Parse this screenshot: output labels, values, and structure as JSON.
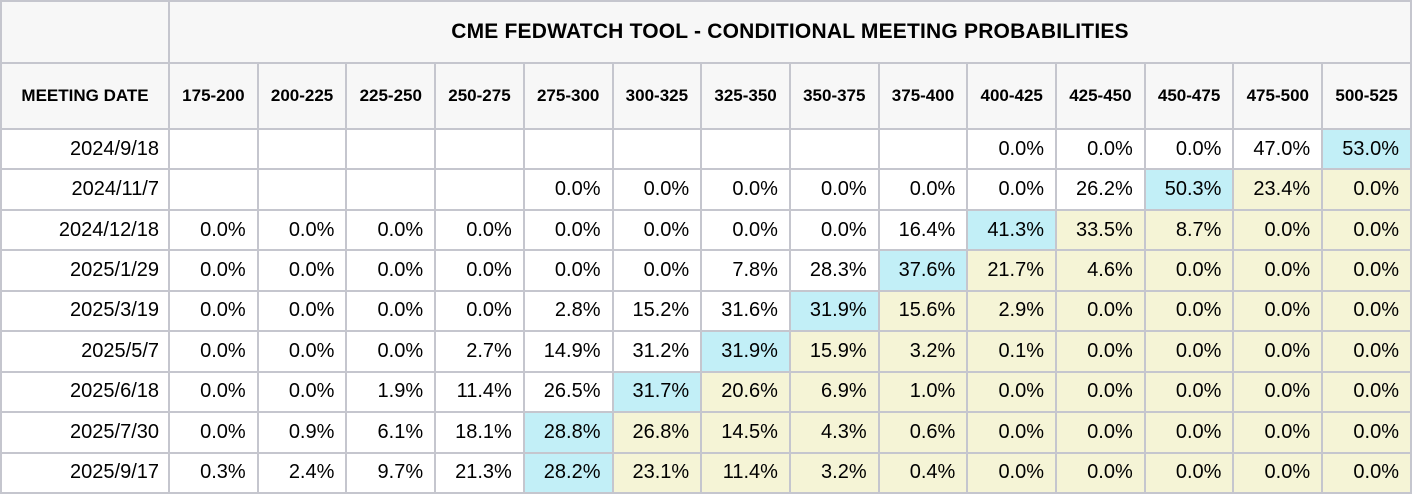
{
  "colors": {
    "highlight_cyan": "#c2eff7",
    "highlight_yellow": "#f5f4d6",
    "header_bg": "#f7f7f7",
    "grid_line": "#c5c6ce",
    "text": "#000000",
    "cell_bg": "#ffffff"
  },
  "chart_data": {
    "type": "table",
    "title": "CME FEDWATCH TOOL - CONDITIONAL MEETING PROBABILITIES",
    "row_header_label": "MEETING DATE",
    "columns": [
      "175-200",
      "200-225",
      "225-250",
      "250-275",
      "275-300",
      "300-325",
      "325-350",
      "350-375",
      "375-400",
      "400-425",
      "425-450",
      "450-475",
      "475-500",
      "500-525"
    ],
    "highlight_legend": {
      "cyan": "highest-probability cell in row",
      "yellow": "cells right of highest-probability cell",
      "none": "plain white cell"
    },
    "rows": [
      {
        "date": "2024/9/18",
        "cells": [
          {
            "v": "",
            "hl": "none"
          },
          {
            "v": "",
            "hl": "none"
          },
          {
            "v": "",
            "hl": "none"
          },
          {
            "v": "",
            "hl": "none"
          },
          {
            "v": "",
            "hl": "none"
          },
          {
            "v": "",
            "hl": "none"
          },
          {
            "v": "",
            "hl": "none"
          },
          {
            "v": "",
            "hl": "none"
          },
          {
            "v": "",
            "hl": "none"
          },
          {
            "v": "0.0%",
            "hl": "none"
          },
          {
            "v": "0.0%",
            "hl": "none"
          },
          {
            "v": "0.0%",
            "hl": "none"
          },
          {
            "v": "47.0%",
            "hl": "none"
          },
          {
            "v": "53.0%",
            "hl": "cyan"
          }
        ]
      },
      {
        "date": "2024/11/7",
        "cells": [
          {
            "v": "",
            "hl": "none"
          },
          {
            "v": "",
            "hl": "none"
          },
          {
            "v": "",
            "hl": "none"
          },
          {
            "v": "",
            "hl": "none"
          },
          {
            "v": "0.0%",
            "hl": "none"
          },
          {
            "v": "0.0%",
            "hl": "none"
          },
          {
            "v": "0.0%",
            "hl": "none"
          },
          {
            "v": "0.0%",
            "hl": "none"
          },
          {
            "v": "0.0%",
            "hl": "none"
          },
          {
            "v": "0.0%",
            "hl": "none"
          },
          {
            "v": "26.2%",
            "hl": "none"
          },
          {
            "v": "50.3%",
            "hl": "cyan"
          },
          {
            "v": "23.4%",
            "hl": "yellow"
          },
          {
            "v": "0.0%",
            "hl": "yellow"
          }
        ]
      },
      {
        "date": "2024/12/18",
        "cells": [
          {
            "v": "0.0%",
            "hl": "none"
          },
          {
            "v": "0.0%",
            "hl": "none"
          },
          {
            "v": "0.0%",
            "hl": "none"
          },
          {
            "v": "0.0%",
            "hl": "none"
          },
          {
            "v": "0.0%",
            "hl": "none"
          },
          {
            "v": "0.0%",
            "hl": "none"
          },
          {
            "v": "0.0%",
            "hl": "none"
          },
          {
            "v": "0.0%",
            "hl": "none"
          },
          {
            "v": "16.4%",
            "hl": "none"
          },
          {
            "v": "41.3%",
            "hl": "cyan"
          },
          {
            "v": "33.5%",
            "hl": "yellow"
          },
          {
            "v": "8.7%",
            "hl": "yellow"
          },
          {
            "v": "0.0%",
            "hl": "yellow"
          },
          {
            "v": "0.0%",
            "hl": "yellow"
          }
        ]
      },
      {
        "date": "2025/1/29",
        "cells": [
          {
            "v": "0.0%",
            "hl": "none"
          },
          {
            "v": "0.0%",
            "hl": "none"
          },
          {
            "v": "0.0%",
            "hl": "none"
          },
          {
            "v": "0.0%",
            "hl": "none"
          },
          {
            "v": "0.0%",
            "hl": "none"
          },
          {
            "v": "0.0%",
            "hl": "none"
          },
          {
            "v": "7.8%",
            "hl": "none"
          },
          {
            "v": "28.3%",
            "hl": "none"
          },
          {
            "v": "37.6%",
            "hl": "cyan"
          },
          {
            "v": "21.7%",
            "hl": "yellow"
          },
          {
            "v": "4.6%",
            "hl": "yellow"
          },
          {
            "v": "0.0%",
            "hl": "yellow"
          },
          {
            "v": "0.0%",
            "hl": "yellow"
          },
          {
            "v": "0.0%",
            "hl": "yellow"
          }
        ]
      },
      {
        "date": "2025/3/19",
        "cells": [
          {
            "v": "0.0%",
            "hl": "none"
          },
          {
            "v": "0.0%",
            "hl": "none"
          },
          {
            "v": "0.0%",
            "hl": "none"
          },
          {
            "v": "0.0%",
            "hl": "none"
          },
          {
            "v": "2.8%",
            "hl": "none"
          },
          {
            "v": "15.2%",
            "hl": "none"
          },
          {
            "v": "31.6%",
            "hl": "none"
          },
          {
            "v": "31.9%",
            "hl": "cyan"
          },
          {
            "v": "15.6%",
            "hl": "yellow"
          },
          {
            "v": "2.9%",
            "hl": "yellow"
          },
          {
            "v": "0.0%",
            "hl": "yellow"
          },
          {
            "v": "0.0%",
            "hl": "yellow"
          },
          {
            "v": "0.0%",
            "hl": "yellow"
          },
          {
            "v": "0.0%",
            "hl": "yellow"
          }
        ]
      },
      {
        "date": "2025/5/7",
        "cells": [
          {
            "v": "0.0%",
            "hl": "none"
          },
          {
            "v": "0.0%",
            "hl": "none"
          },
          {
            "v": "0.0%",
            "hl": "none"
          },
          {
            "v": "2.7%",
            "hl": "none"
          },
          {
            "v": "14.9%",
            "hl": "none"
          },
          {
            "v": "31.2%",
            "hl": "none"
          },
          {
            "v": "31.9%",
            "hl": "cyan"
          },
          {
            "v": "15.9%",
            "hl": "yellow"
          },
          {
            "v": "3.2%",
            "hl": "yellow"
          },
          {
            "v": "0.1%",
            "hl": "yellow"
          },
          {
            "v": "0.0%",
            "hl": "yellow"
          },
          {
            "v": "0.0%",
            "hl": "yellow"
          },
          {
            "v": "0.0%",
            "hl": "yellow"
          },
          {
            "v": "0.0%",
            "hl": "yellow"
          }
        ]
      },
      {
        "date": "2025/6/18",
        "cells": [
          {
            "v": "0.0%",
            "hl": "none"
          },
          {
            "v": "0.0%",
            "hl": "none"
          },
          {
            "v": "1.9%",
            "hl": "none"
          },
          {
            "v": "11.4%",
            "hl": "none"
          },
          {
            "v": "26.5%",
            "hl": "none"
          },
          {
            "v": "31.7%",
            "hl": "cyan"
          },
          {
            "v": "20.6%",
            "hl": "yellow"
          },
          {
            "v": "6.9%",
            "hl": "yellow"
          },
          {
            "v": "1.0%",
            "hl": "yellow"
          },
          {
            "v": "0.0%",
            "hl": "yellow"
          },
          {
            "v": "0.0%",
            "hl": "yellow"
          },
          {
            "v": "0.0%",
            "hl": "yellow"
          },
          {
            "v": "0.0%",
            "hl": "yellow"
          },
          {
            "v": "0.0%",
            "hl": "yellow"
          }
        ]
      },
      {
        "date": "2025/7/30",
        "cells": [
          {
            "v": "0.0%",
            "hl": "none"
          },
          {
            "v": "0.9%",
            "hl": "none"
          },
          {
            "v": "6.1%",
            "hl": "none"
          },
          {
            "v": "18.1%",
            "hl": "none"
          },
          {
            "v": "28.8%",
            "hl": "cyan"
          },
          {
            "v": "26.8%",
            "hl": "yellow"
          },
          {
            "v": "14.5%",
            "hl": "yellow"
          },
          {
            "v": "4.3%",
            "hl": "yellow"
          },
          {
            "v": "0.6%",
            "hl": "yellow"
          },
          {
            "v": "0.0%",
            "hl": "yellow"
          },
          {
            "v": "0.0%",
            "hl": "yellow"
          },
          {
            "v": "0.0%",
            "hl": "yellow"
          },
          {
            "v": "0.0%",
            "hl": "yellow"
          },
          {
            "v": "0.0%",
            "hl": "yellow"
          }
        ]
      },
      {
        "date": "2025/9/17",
        "cells": [
          {
            "v": "0.3%",
            "hl": "none"
          },
          {
            "v": "2.4%",
            "hl": "none"
          },
          {
            "v": "9.7%",
            "hl": "none"
          },
          {
            "v": "21.3%",
            "hl": "none"
          },
          {
            "v": "28.2%",
            "hl": "cyan"
          },
          {
            "v": "23.1%",
            "hl": "yellow"
          },
          {
            "v": "11.4%",
            "hl": "yellow"
          },
          {
            "v": "3.2%",
            "hl": "yellow"
          },
          {
            "v": "0.4%",
            "hl": "yellow"
          },
          {
            "v": "0.0%",
            "hl": "yellow"
          },
          {
            "v": "0.0%",
            "hl": "yellow"
          },
          {
            "v": "0.0%",
            "hl": "yellow"
          },
          {
            "v": "0.0%",
            "hl": "yellow"
          },
          {
            "v": "0.0%",
            "hl": "yellow"
          }
        ]
      }
    ]
  }
}
